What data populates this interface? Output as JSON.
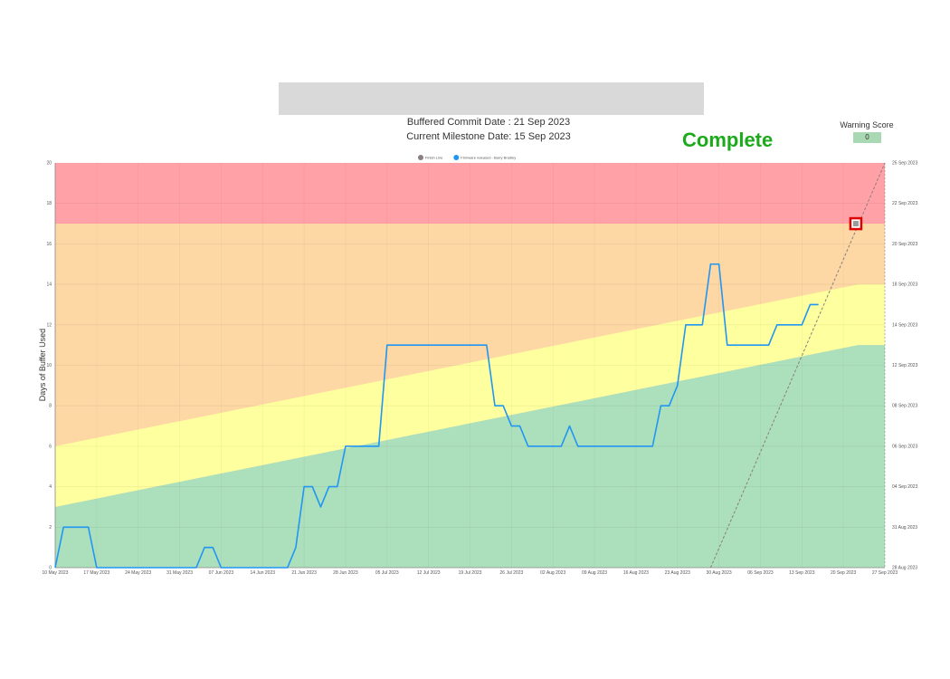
{
  "header": {
    "buffered_commit": "Buffered Commit Date : 21 Sep 2023",
    "current_milestone": "Current Milestone Date: 15 Sep 2023",
    "status": "Complete",
    "warning_score_label": "Warning Score",
    "warning_score_value": "0"
  },
  "colors": {
    "red_zone": "#ffa1a6",
    "orange_zone": "#fdd7a4",
    "yellow_zone": "#feff9e",
    "green_zone": "#acdfbb",
    "series_line": "#2196f3",
    "finish_line": "#8a7f7f",
    "status_green": "#1aaa1a",
    "marker_red": "#e00000"
  },
  "chart_data": {
    "type": "line",
    "ylabel": "Days of Buffer Used",
    "x_ticks": [
      "10 May 2023",
      "17 May 2023",
      "24 May 2023",
      "31 May 2023",
      "07 Jun 2023",
      "14 Jun 2023",
      "21 Jun 2023",
      "28 Jun 2023",
      "05 Jul 2023",
      "12 Jul 2023",
      "19 Jul 2023",
      "26 Jul 2023",
      "02 Aug 2023",
      "09 Aug 2023",
      "16 Aug 2023",
      "23 Aug 2023",
      "30 Aug 2023",
      "06 Sep 2023",
      "13 Sep 2023",
      "20 Sep 2023",
      "27 Sep 2023"
    ],
    "y_ticks": [
      "0",
      "2",
      "4",
      "6",
      "8",
      "10",
      "12",
      "14",
      "16",
      "18",
      "20"
    ],
    "y2_ticks": [
      "28 Aug 2023",
      "31 Aug 2023",
      "04 Sep 2023",
      "06 Sep 2023",
      "08 Sep 2023",
      "12 Sep 2023",
      "14 Sep 2023",
      "18 Sep 2023",
      "20 Sep 2023",
      "22 Sep 2023",
      "25 Sep 2023"
    ],
    "ylim": [
      0,
      20
    ],
    "legend": [
      {
        "name": "Finish Line",
        "color": "#8a7f7f"
      },
      {
        "name": "Firmware released - Barry Bradley",
        "color": "#2196f3"
      }
    ],
    "zones": {
      "red_lower": 17,
      "yellow_lower_start": 3,
      "yellow_lower_end": 11,
      "yellow_upper_start": 6,
      "yellow_upper_end": 14
    },
    "series": [
      {
        "name": "Firmware released - Barry Bradley",
        "points": [
          [
            0,
            0
          ],
          [
            1,
            2
          ],
          [
            4,
            2
          ],
          [
            5,
            0
          ],
          [
            17,
            0
          ],
          [
            18,
            1
          ],
          [
            19,
            1
          ],
          [
            20,
            0
          ],
          [
            28,
            0
          ],
          [
            29,
            1
          ],
          [
            30,
            4
          ],
          [
            31,
            4
          ],
          [
            32,
            3
          ],
          [
            33,
            4
          ],
          [
            34,
            4
          ],
          [
            35,
            6
          ],
          [
            39,
            6
          ],
          [
            40,
            11
          ],
          [
            52,
            11
          ],
          [
            53,
            8
          ],
          [
            54,
            8
          ],
          [
            55,
            7
          ],
          [
            56,
            7
          ],
          [
            57,
            6
          ],
          [
            61,
            6
          ],
          [
            62,
            7
          ],
          [
            63,
            6
          ],
          [
            72,
            6
          ],
          [
            73,
            8
          ],
          [
            74,
            8
          ],
          [
            75,
            9
          ],
          [
            76,
            12
          ],
          [
            78,
            12
          ],
          [
            79,
            15
          ],
          [
            80,
            15
          ],
          [
            81,
            11
          ],
          [
            86,
            11
          ],
          [
            87,
            12
          ],
          [
            90,
            12
          ],
          [
            91,
            13
          ],
          [
            92,
            13
          ]
        ]
      },
      {
        "name": "Finish Line",
        "points": [
          [
            79,
            0
          ],
          [
            100,
            20
          ]
        ]
      }
    ],
    "marker": {
      "x": 96.5,
      "y": 17
    }
  }
}
